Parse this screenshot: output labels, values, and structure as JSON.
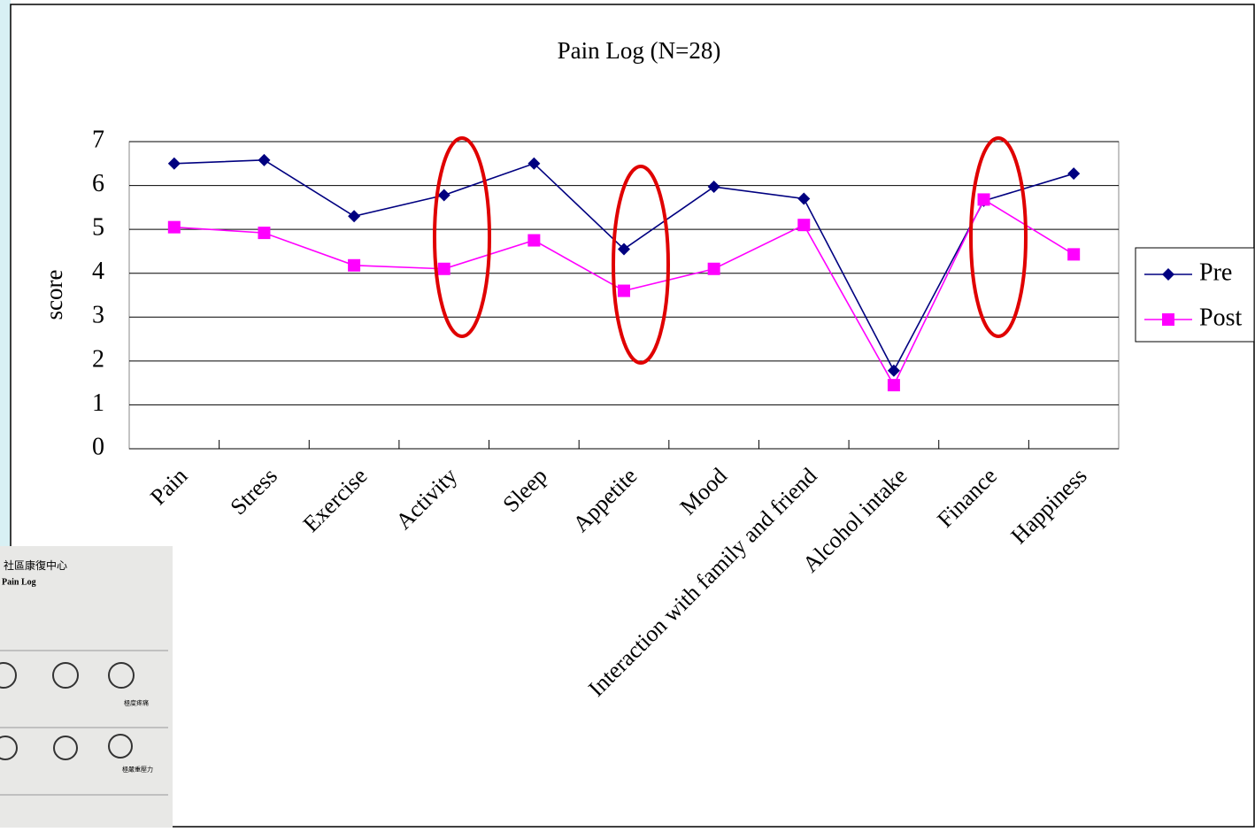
{
  "chart_data": {
    "type": "line",
    "title": "Pain Log (N=28)",
    "y_label": "score",
    "categories": [
      "Pain",
      "Stress",
      "Exercise",
      "Activity",
      "Sleep",
      "Appetite",
      "Mood",
      "Interaction with family and friend",
      "Alcohol intake",
      "Finance",
      "Happiness"
    ],
    "series": [
      {
        "name": "Pre",
        "color": "#000080",
        "marker": "diamond",
        "values": [
          6.5,
          6.58,
          5.3,
          5.78,
          6.5,
          4.55,
          5.97,
          5.7,
          1.78,
          5.65,
          6.27
        ]
      },
      {
        "name": "Post",
        "color": "#ff00ff",
        "marker": "square",
        "values": [
          5.05,
          4.92,
          4.18,
          4.1,
          4.75,
          3.6,
          4.1,
          5.1,
          1.45,
          5.68,
          4.43
        ]
      }
    ],
    "ylim": [
      0,
      7
    ],
    "yticks": [
      0,
      1,
      2,
      3,
      4,
      5,
      6,
      7
    ],
    "grid": true,
    "legend": "right"
  },
  "inset": {
    "texts": [
      "社區康復中心",
      "Pain Log",
      "極度疼痛",
      "極嚴重壓力"
    ]
  }
}
